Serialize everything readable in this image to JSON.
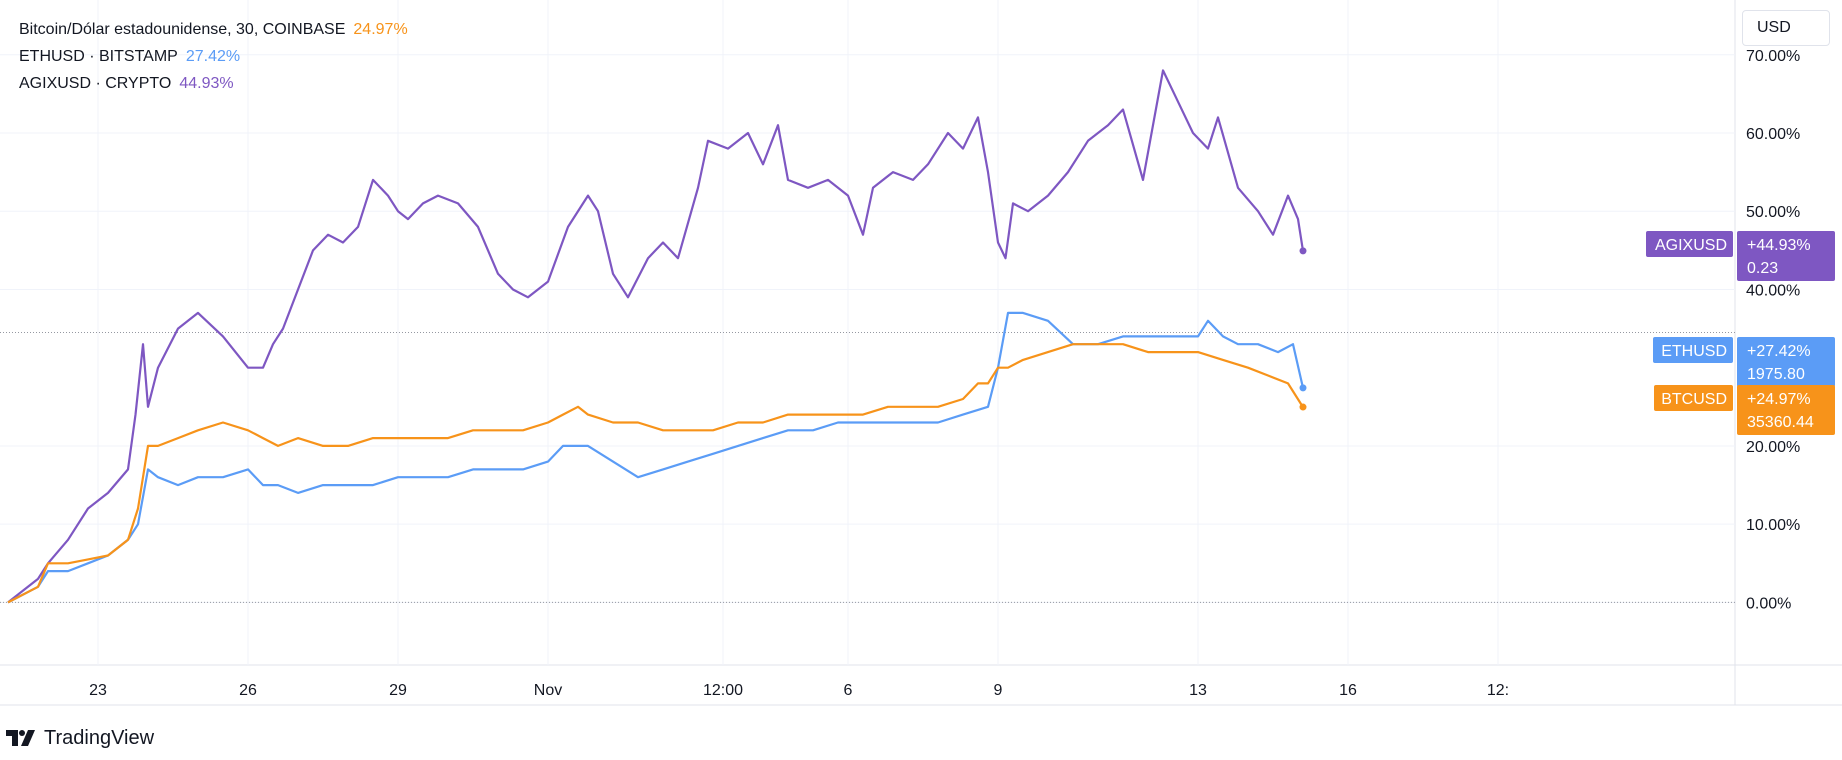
{
  "legend": [
    {
      "name": "Bitcoin/Dólar estadounidense, 30, COINBASE",
      "pct": "24.97%",
      "color": "#f7931a"
    },
    {
      "name": "ETHUSD · BITSTAMP",
      "pct": "27.42%",
      "color": "#5b9cf6"
    },
    {
      "name": "AGIXUSD · CRYPTO",
      "pct": "44.93%",
      "color": "#7e57c2"
    }
  ],
  "unit_label": "USD",
  "brand": "TradingView",
  "chart_data": {
    "type": "line",
    "y_axis": {
      "ticks": [
        0,
        10,
        20,
        40,
        50,
        60,
        70
      ],
      "tick_labels": [
        "0.00%",
        "10.00%",
        "20.00%",
        "40.00%",
        "50.00%",
        "60.00%",
        "70.00%"
      ],
      "range": [
        -8,
        77
      ]
    },
    "x_axis": {
      "tick_labels": [
        "23",
        "26",
        "29",
        "Nov",
        "12:00",
        "6",
        "9",
        "13",
        "16",
        "12:"
      ],
      "tick_positions": [
        3,
        6,
        9,
        12,
        15.5,
        18,
        21,
        25,
        28,
        31
      ],
      "range": [
        1.2,
        31.5
      ]
    },
    "reference_line": 34.5,
    "series": [
      {
        "name": "AGIXUSD",
        "color": "#7e57c2",
        "x": [
          1.2,
          1.8,
          2.0,
          2.4,
          2.8,
          3.2,
          3.6,
          3.75,
          3.9,
          4.0,
          4.2,
          4.6,
          5.0,
          5.5,
          6.0,
          6.3,
          6.5,
          6.7,
          7.0,
          7.3,
          7.6,
          7.9,
          8.2,
          8.5,
          8.8,
          9.0,
          9.2,
          9.5,
          9.8,
          10.2,
          10.6,
          11.0,
          11.3,
          11.6,
          12.0,
          12.4,
          12.8,
          13.0,
          13.3,
          13.6,
          14.0,
          14.3,
          14.6,
          15.0,
          15.2,
          15.6,
          16.0,
          16.3,
          16.6,
          16.8,
          17.2,
          17.6,
          18.0,
          18.3,
          18.5,
          18.9,
          19.3,
          19.6,
          20.0,
          20.3,
          20.6,
          20.8,
          21.0,
          21.15,
          21.3,
          21.6,
          22.0,
          22.4,
          22.8,
          23.2,
          23.5,
          23.9,
          24.3,
          24.6,
          24.9,
          25.2,
          25.4,
          25.8,
          26.2,
          26.5,
          26.8,
          27.0,
          27.1
        ],
        "values": [
          0,
          3,
          5,
          8,
          12,
          14,
          17,
          24,
          33,
          25,
          30,
          35,
          37,
          34,
          30,
          30,
          33,
          35,
          40,
          45,
          47,
          46,
          48,
          54,
          52,
          50,
          49,
          51,
          52,
          51,
          48,
          42,
          40,
          39,
          41,
          48,
          52,
          50,
          42,
          39,
          44,
          46,
          44,
          53,
          59,
          58,
          60,
          56,
          61,
          54,
          53,
          54,
          52,
          47,
          53,
          55,
          54,
          56,
          60,
          58,
          62,
          55,
          46,
          44,
          51,
          50,
          52,
          55,
          59,
          61,
          63,
          54,
          68,
          64,
          60,
          58,
          62,
          53,
          50,
          47,
          52,
          49,
          44.93
        ]
      },
      {
        "name": "ETHUSD",
        "color": "#5b9cf6",
        "x": [
          1.2,
          1.8,
          2.0,
          2.4,
          2.8,
          3.2,
          3.6,
          3.8,
          4.0,
          4.2,
          4.6,
          5.0,
          5.5,
          6.0,
          6.3,
          6.6,
          7.0,
          7.5,
          8.0,
          8.5,
          9.0,
          9.5,
          10.0,
          10.5,
          11.0,
          11.5,
          12.0,
          12.3,
          12.8,
          13.3,
          13.8,
          14.3,
          14.8,
          15.3,
          15.8,
          16.3,
          16.8,
          17.3,
          17.8,
          18.3,
          18.8,
          19.3,
          19.8,
          20.3,
          20.8,
          21.0,
          21.2,
          21.5,
          22.0,
          22.5,
          23.0,
          23.5,
          24.0,
          24.5,
          25.0,
          25.2,
          25.5,
          25.8,
          26.2,
          26.6,
          26.9,
          27.1
        ],
        "values": [
          0,
          2,
          4,
          4,
          5,
          6,
          8,
          10,
          17,
          16,
          15,
          16,
          16,
          17,
          15,
          15,
          14,
          15,
          15,
          15,
          16,
          16,
          16,
          17,
          17,
          17,
          18,
          20,
          20,
          18,
          16,
          17,
          18,
          19,
          20,
          21,
          22,
          22,
          23,
          23,
          23,
          23,
          23,
          24,
          25,
          30,
          37,
          37,
          36,
          33,
          33,
          34,
          34,
          34,
          34,
          36,
          34,
          33,
          33,
          32,
          33,
          27.42
        ]
      },
      {
        "name": "BTCUSD",
        "color": "#f7931a",
        "x": [
          1.2,
          1.8,
          2.0,
          2.4,
          2.8,
          3.2,
          3.6,
          3.8,
          4.0,
          4.2,
          4.6,
          5.0,
          5.5,
          6.0,
          6.3,
          6.6,
          7.0,
          7.5,
          8.0,
          8.5,
          9.0,
          9.5,
          10.0,
          10.5,
          11.0,
          11.5,
          12.0,
          12.3,
          12.6,
          12.8,
          13.3,
          13.8,
          14.3,
          14.8,
          15.3,
          15.8,
          16.3,
          16.8,
          17.3,
          17.8,
          18.3,
          18.8,
          19.3,
          19.8,
          20.3,
          20.6,
          20.8,
          21.0,
          21.2,
          21.5,
          22.0,
          22.5,
          23.0,
          23.5,
          24.0,
          24.5,
          25.0,
          25.5,
          26.0,
          26.4,
          26.8,
          27.1
        ],
        "values": [
          0,
          2,
          5,
          5,
          5.5,
          6,
          8,
          12,
          20,
          20,
          21,
          22,
          23,
          22,
          21,
          20,
          21,
          20,
          20,
          21,
          21,
          21,
          21,
          22,
          22,
          22,
          23,
          24,
          25,
          24,
          23,
          23,
          22,
          22,
          22,
          23,
          23,
          24,
          24,
          24,
          24,
          25,
          25,
          25,
          26,
          28,
          28,
          30,
          30,
          31,
          32,
          33,
          33,
          33,
          32,
          32,
          32,
          31,
          30,
          29,
          28,
          24.97
        ]
      }
    ],
    "end_labels": [
      {
        "name": "AGIXUSD",
        "pct": "+44.93%",
        "price": "0.23",
        "color": "#7e57c2",
        "value": 44.93
      },
      {
        "name": "ETHUSD",
        "pct": "+27.42%",
        "price": "1975.80",
        "color": "#5b9cf6",
        "value": 27.42
      },
      {
        "name": "BTCUSD",
        "pct": "+24.97%",
        "price": "35360.44",
        "color": "#f7931a",
        "value": 24.97
      }
    ]
  }
}
